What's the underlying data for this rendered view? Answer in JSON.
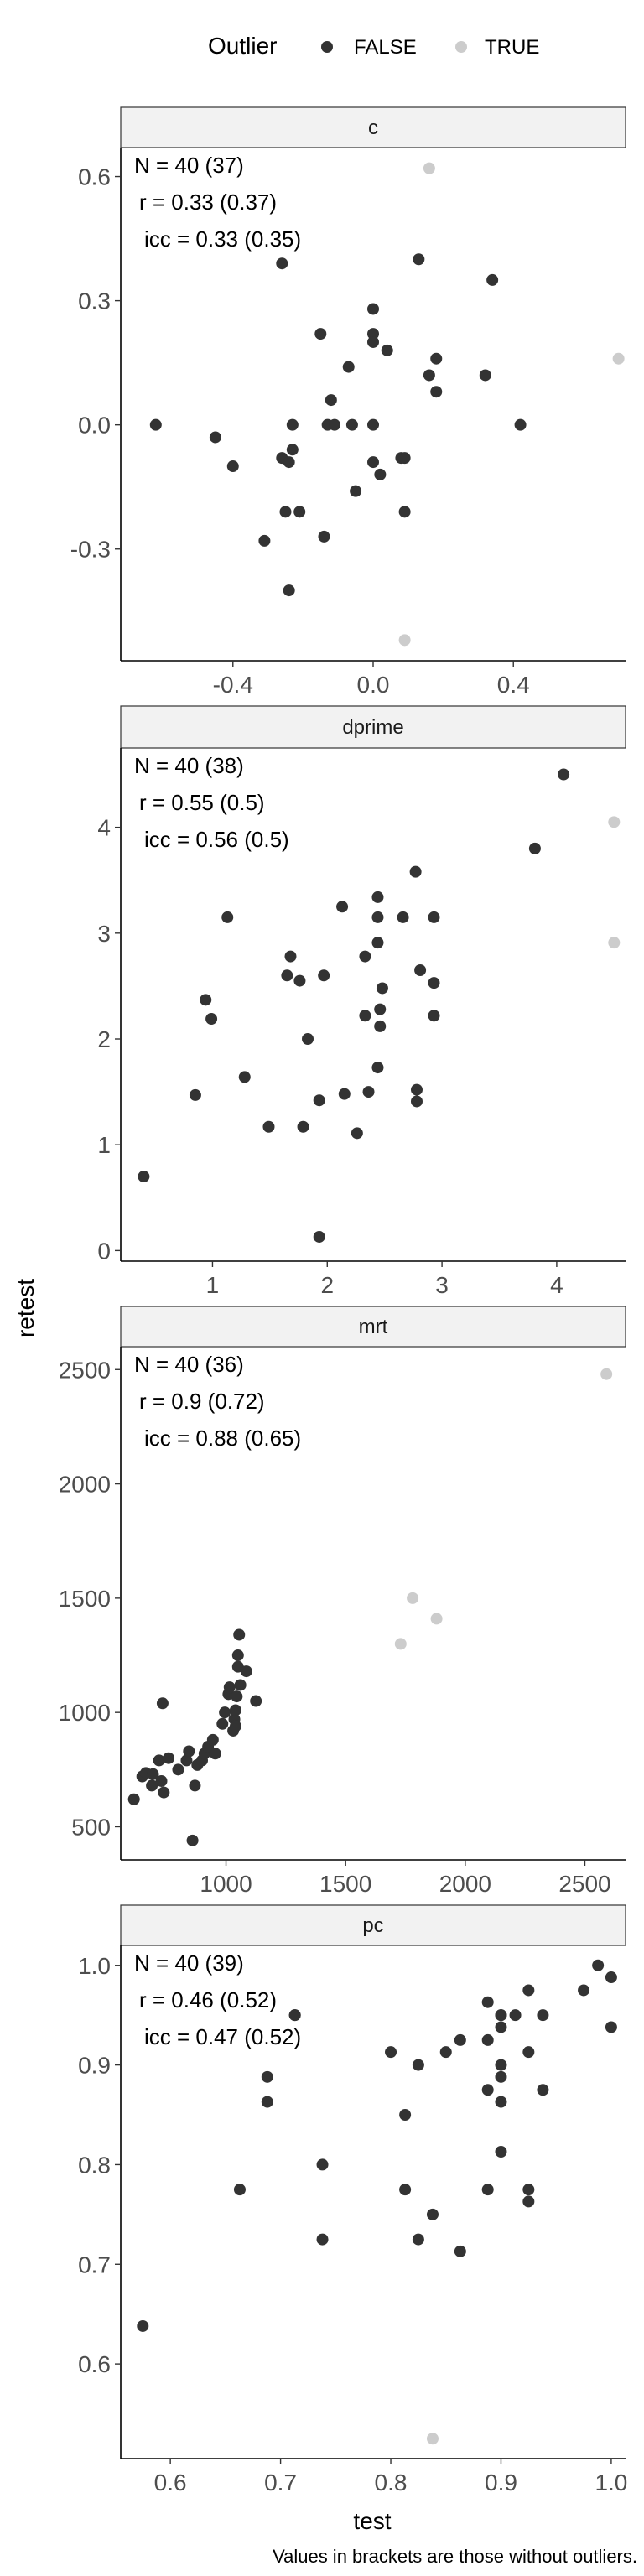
{
  "legend": {
    "title": "Outlier",
    "items": [
      {
        "label": "FALSE",
        "color": "#333333"
      },
      {
        "label": "TRUE",
        "color": "#cccccc"
      }
    ]
  },
  "axis_x_label": "test",
  "axis_y_label": "retest",
  "caption": "Values in brackets are those without outliers.",
  "chart_data": [
    {
      "type": "scatter",
      "panel": "c",
      "stats": [
        "N = 40 (37)",
        "r = 0.33 (0.37)",
        "icc = 0.33 (0.35)"
      ],
      "xlim": [
        -0.72,
        0.72
      ],
      "ylim": [
        -0.57,
        0.67
      ],
      "xticks": [
        -0.4,
        0.0,
        0.4
      ],
      "xtick_labels": [
        "-0.4",
        "0.0",
        "0.4"
      ],
      "yticks": [
        -0.3,
        0.0,
        0.3,
        0.6
      ],
      "ytick_labels": [
        "-0.3",
        "0.0",
        "0.3",
        "0.6"
      ],
      "points_false": [
        [
          -0.62,
          0.0
        ],
        [
          -0.45,
          -0.03
        ],
        [
          -0.4,
          -0.1
        ],
        [
          -0.31,
          -0.28
        ],
        [
          -0.26,
          0.39
        ],
        [
          -0.26,
          -0.08
        ],
        [
          -0.25,
          -0.21
        ],
        [
          -0.24,
          -0.4
        ],
        [
          -0.24,
          -0.09
        ],
        [
          -0.23,
          -0.06
        ],
        [
          -0.23,
          0.0
        ],
        [
          -0.21,
          -0.21
        ],
        [
          -0.15,
          0.22
        ],
        [
          -0.14,
          -0.27
        ],
        [
          -0.13,
          0.0
        ],
        [
          -0.12,
          0.06
        ],
        [
          -0.11,
          0.0
        ],
        [
          -0.07,
          0.14
        ],
        [
          -0.05,
          -0.16
        ],
        [
          -0.06,
          0.0
        ],
        [
          0.0,
          0.28
        ],
        [
          0.0,
          0.22
        ],
        [
          0.0,
          0.2
        ],
        [
          0.0,
          -0.09
        ],
        [
          0.0,
          0.0
        ],
        [
          0.02,
          -0.12
        ],
        [
          0.04,
          0.18
        ],
        [
          0.08,
          -0.08
        ],
        [
          0.09,
          -0.21
        ],
        [
          0.09,
          -0.08
        ],
        [
          0.13,
          0.4
        ],
        [
          0.16,
          0.12
        ],
        [
          0.18,
          0.08
        ],
        [
          0.18,
          0.16
        ],
        [
          0.32,
          0.12
        ],
        [
          0.34,
          0.35
        ],
        [
          0.42,
          0.0
        ]
      ],
      "points_true": [
        [
          0.16,
          0.62
        ],
        [
          0.09,
          -0.52
        ],
        [
          0.7,
          0.16
        ]
      ]
    },
    {
      "type": "scatter",
      "panel": "dprime",
      "stats": [
        "N = 40 (38)",
        "r = 0.55 (0.5)",
        "icc = 0.56 (0.5)"
      ],
      "xlim": [
        0.2,
        4.6
      ],
      "ylim": [
        -0.1,
        4.75
      ],
      "xticks": [
        1,
        2,
        3,
        4
      ],
      "xtick_labels": [
        "1",
        "2",
        "3",
        "4"
      ],
      "yticks": [
        0,
        1,
        2,
        3,
        4
      ],
      "ytick_labels": [
        "0",
        "1",
        "2",
        "3",
        "4"
      ],
      "points_false": [
        [
          0.4,
          0.7
        ],
        [
          0.85,
          1.47
        ],
        [
          0.94,
          2.37
        ],
        [
          0.99,
          2.19
        ],
        [
          1.13,
          3.15
        ],
        [
          1.28,
          1.64
        ],
        [
          1.49,
          1.17
        ],
        [
          1.65,
          2.6
        ],
        [
          1.68,
          2.78
        ],
        [
          1.76,
          2.55
        ],
        [
          1.79,
          1.17
        ],
        [
          1.83,
          2.0
        ],
        [
          1.93,
          1.42
        ],
        [
          1.93,
          0.13
        ],
        [
          1.97,
          2.6
        ],
        [
          2.13,
          3.25
        ],
        [
          2.15,
          1.48
        ],
        [
          2.26,
          1.11
        ],
        [
          2.33,
          2.22
        ],
        [
          2.33,
          2.78
        ],
        [
          2.36,
          1.5
        ],
        [
          2.44,
          1.73
        ],
        [
          2.44,
          2.91
        ],
        [
          2.44,
          3.15
        ],
        [
          2.44,
          3.34
        ],
        [
          2.46,
          2.12
        ],
        [
          2.46,
          2.28
        ],
        [
          2.48,
          2.48
        ],
        [
          2.66,
          3.15
        ],
        [
          2.77,
          3.58
        ],
        [
          2.78,
          1.52
        ],
        [
          2.78,
          1.41
        ],
        [
          2.81,
          2.65
        ],
        [
          2.93,
          2.22
        ],
        [
          2.93,
          2.53
        ],
        [
          2.93,
          3.15
        ],
        [
          3.81,
          3.8
        ],
        [
          4.06,
          4.5
        ]
      ],
      "points_true": [
        [
          4.5,
          4.05
        ],
        [
          4.5,
          2.91
        ]
      ]
    },
    {
      "type": "scatter",
      "panel": "mrt",
      "stats": [
        "N = 40 (36)",
        "r = 0.9 (0.72)",
        "icc = 0.88 (0.65)"
      ],
      "xlim": [
        560,
        2670
      ],
      "ylim": [
        355,
        2600
      ],
      "xticks": [
        1000,
        1500,
        2000,
        2500
      ],
      "xtick_labels": [
        "1000",
        "1500",
        "2000",
        "2500"
      ],
      "yticks": [
        500,
        1000,
        1500,
        2000,
        2500
      ],
      "ytick_labels": [
        "500",
        "1000",
        "1500",
        "2000",
        "2500"
      ],
      "points_false": [
        [
          615,
          620
        ],
        [
          650,
          720
        ],
        [
          665,
          735
        ],
        [
          690,
          680
        ],
        [
          695,
          730
        ],
        [
          720,
          790
        ],
        [
          730,
          700
        ],
        [
          735,
          1040
        ],
        [
          740,
          650
        ],
        [
          760,
          800
        ],
        [
          800,
          750
        ],
        [
          835,
          790
        ],
        [
          845,
          830
        ],
        [
          860,
          440
        ],
        [
          870,
          680
        ],
        [
          880,
          770
        ],
        [
          900,
          790
        ],
        [
          910,
          820
        ],
        [
          925,
          850
        ],
        [
          945,
          880
        ],
        [
          955,
          820
        ],
        [
          985,
          950
        ],
        [
          995,
          1000
        ],
        [
          1010,
          1080
        ],
        [
          1015,
          1110
        ],
        [
          1030,
          920
        ],
        [
          1035,
          970
        ],
        [
          1040,
          1010
        ],
        [
          1045,
          1070
        ],
        [
          1050,
          1200
        ],
        [
          1050,
          1250
        ],
        [
          1055,
          1340
        ],
        [
          1060,
          1120
        ],
        [
          1085,
          1180
        ],
        [
          1125,
          1050
        ],
        [
          1040,
          940
        ]
      ],
      "points_true": [
        [
          1730,
          1300
        ],
        [
          1780,
          1500
        ],
        [
          1880,
          1410
        ],
        [
          2590,
          2480
        ]
      ]
    },
    {
      "type": "scatter",
      "panel": "pc",
      "stats": [
        "N = 40 (39)",
        "r = 0.46 (0.52)",
        "icc = 0.47 (0.52)"
      ],
      "xlim": [
        0.555,
        1.013
      ],
      "ylim": [
        0.505,
        1.02
      ],
      "xticks": [
        0.6,
        0.7,
        0.8,
        0.9,
        1.0
      ],
      "xtick_labels": [
        "0.6",
        "0.7",
        "0.8",
        "0.9",
        "1.0"
      ],
      "yticks": [
        0.6,
        0.7,
        0.8,
        0.9,
        1.0
      ],
      "ytick_labels": [
        "0.6",
        "0.7",
        "0.8",
        "0.9",
        "1.0"
      ],
      "points_false": [
        [
          0.575,
          0.638
        ],
        [
          0.663,
          0.775
        ],
        [
          0.688,
          0.888
        ],
        [
          0.688,
          0.863
        ],
        [
          0.713,
          0.95
        ],
        [
          0.738,
          0.8
        ],
        [
          0.738,
          0.725
        ],
        [
          0.8,
          0.913
        ],
        [
          0.813,
          0.85
        ],
        [
          0.813,
          0.775
        ],
        [
          0.825,
          0.725
        ],
        [
          0.825,
          0.9
        ],
        [
          0.838,
          0.75
        ],
        [
          0.85,
          0.913
        ],
        [
          0.863,
          0.925
        ],
        [
          0.863,
          0.713
        ],
        [
          0.888,
          0.963
        ],
        [
          0.888,
          0.925
        ],
        [
          0.888,
          0.875
        ],
        [
          0.888,
          0.775
        ],
        [
          0.9,
          0.95
        ],
        [
          0.9,
          0.938
        ],
        [
          0.9,
          0.9
        ],
        [
          0.9,
          0.863
        ],
        [
          0.9,
          0.813
        ],
        [
          0.913,
          0.95
        ],
        [
          0.925,
          0.975
        ],
        [
          0.925,
          0.913
        ],
        [
          0.925,
          0.775
        ],
        [
          0.925,
          0.763
        ],
        [
          0.938,
          0.95
        ],
        [
          0.938,
          0.875
        ],
        [
          0.975,
          0.975
        ],
        [
          0.988,
          1.0
        ],
        [
          1.0,
          0.988
        ],
        [
          1.0,
          0.938
        ],
        [
          0.9,
          0.888
        ],
        [
          0.713,
          0.95
        ],
        [
          0.9,
          0.95
        ]
      ],
      "points_true": [
        [
          0.838,
          0.525
        ]
      ]
    }
  ]
}
